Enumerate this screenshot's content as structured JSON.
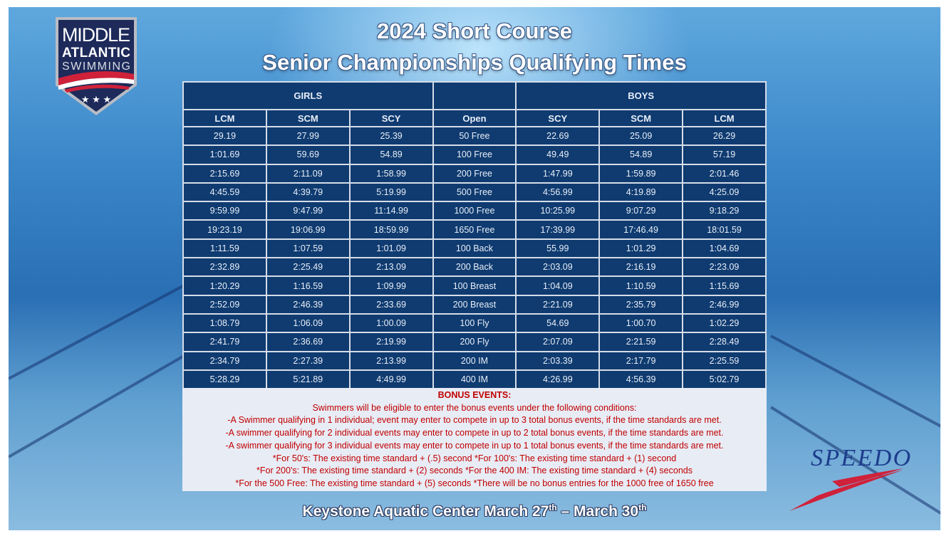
{
  "title_line1": "2024 Short Course",
  "title_line2": "Senior Championships Qualifying Times",
  "logo": {
    "text": [
      "MIDDLE",
      "ATLANTIC",
      "SWIMMING"
    ]
  },
  "sponsor_logo": "SPEEDO",
  "colors": {
    "table_bg": "#0f3b70",
    "bonus_text": "#c00000",
    "bonus_bg": "#e8ecf5"
  },
  "table": {
    "girls_label": "GIRLS",
    "boys_label": "BOYS",
    "columns": [
      "LCM",
      "SCM",
      "SCY",
      "Open",
      "SCY",
      "SCM",
      "LCM"
    ],
    "rows": [
      [
        "29.19",
        "27.99",
        "25.39",
        "50 Free",
        "22.69",
        "25.09",
        "26.29"
      ],
      [
        "1:01.69",
        "59.69",
        "54.89",
        "100 Free",
        "49.49",
        "54.89",
        "57.19"
      ],
      [
        "2:15.69",
        "2:11.09",
        "1:58.99",
        "200 Free",
        "1:47.99",
        "1:59.89",
        "2:01.46"
      ],
      [
        "4:45.59",
        "4:39.79",
        "5:19.99",
        "500 Free",
        "4:56.99",
        "4:19.89",
        "4:25.09"
      ],
      [
        "9:59.99",
        "9:47.99",
        "11:14.99",
        "1000 Free",
        "10:25.99",
        "9:07.29",
        "9:18.29"
      ],
      [
        "19:23.19",
        "19:06.99",
        "18:59.99",
        "1650 Free",
        "17:39.99",
        "17:46.49",
        "18:01.59"
      ],
      [
        "1:11.59",
        "1:07.59",
        "1:01.09",
        "100 Back",
        "55.99",
        "1:01.29",
        "1:04.69"
      ],
      [
        "2:32.89",
        "2:25.49",
        "2:13.09",
        "200 Back",
        "2:03.09",
        "2:16.19",
        "2:23.09"
      ],
      [
        "1:20.29",
        "1:16.59",
        "1:09.99",
        "100 Breast",
        "1:04.09",
        "1:10.59",
        "1:15.69"
      ],
      [
        "2:52.09",
        "2:46.39",
        "2:33.69",
        "200 Breast",
        "2:21.09",
        "2:35.79",
        "2:46.99"
      ],
      [
        "1:08.79",
        "1:06.09",
        "1:00.09",
        "100 Fly",
        "54.69",
        "1:00.70",
        "1:02.29"
      ],
      [
        "2:41.79",
        "2:36.69",
        "2:19.99",
        "200 Fly",
        "2:07.09",
        "2:21.59",
        "2:28.49"
      ],
      [
        "2:34.79",
        "2:27.39",
        "2:13.99",
        "200 IM",
        "2:03.39",
        "2:17.79",
        "2:25.59"
      ],
      [
        "5:28.29",
        "5:21.89",
        "4:49.99",
        "400 IM",
        "4:26.99",
        "4:56.39",
        "5:02.79"
      ]
    ]
  },
  "bonus": {
    "title": "BONUS EVENTS:",
    "lines": [
      "Swimmers will be eligible to enter the bonus events under the following conditions:",
      "-A Swimmer qualifying in 1 individual; event may enter to compete in up to 3 total bonus events, if the time standards are met.",
      "-A swimmer qualifying for 2 individual events may enter to compete in up to 2 total bonus events, if the time standards are met.",
      "-A swimmer qualifying for 3 individual events may enter to compete in up to 1 total bonus events, if the time standards are met.",
      "*For 50's: The existing time standard + (.5) second *For 100's: The existing time standard + (1) second",
      "*For 200's: The existing time standard + (2) seconds *For the 400 IM: The existing time standard + (4) seconds",
      "*For the 500 Free: The existing time standard + (5) seconds *There will be no bonus entries for the 1000 free of 1650 free"
    ]
  },
  "footer": {
    "venue": "Keystone Aquatic Center March 27",
    "sup1": "th",
    "dash": " – March 30",
    "sup2": "th"
  }
}
